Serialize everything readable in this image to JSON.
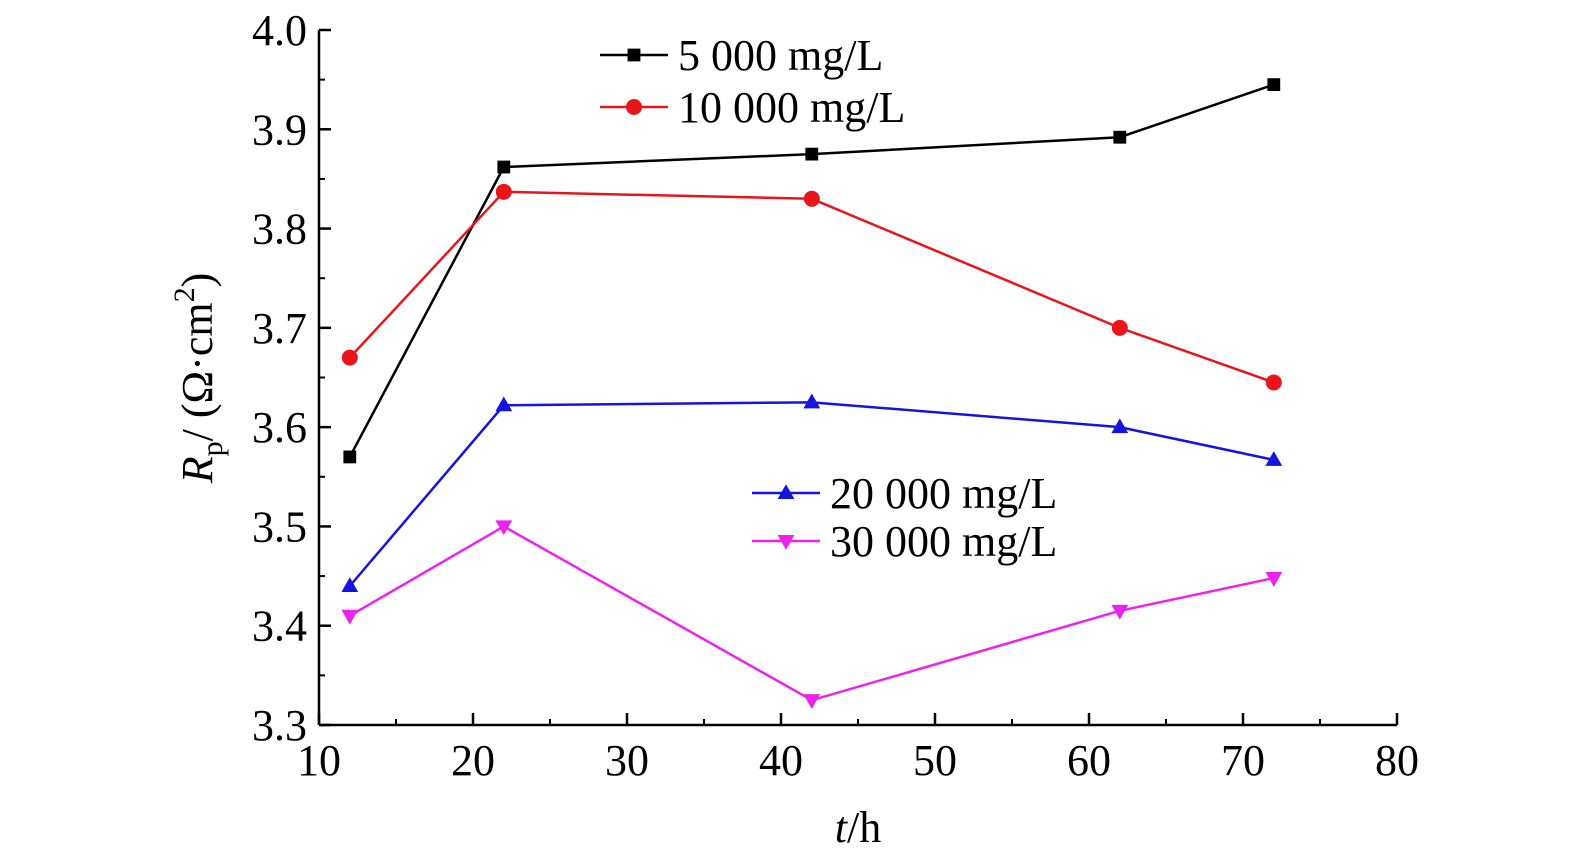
{
  "chart_data": {
    "type": "line",
    "xlabel": {
      "var": "t",
      "unit": "/h"
    },
    "ylabel": {
      "var": "R",
      "sub": "p",
      "unit_pre": "/ (Ω·cm",
      "sup": "2",
      "unit_post": ")"
    },
    "xlim": [
      10,
      80
    ],
    "ylim": [
      3.3,
      4.0
    ],
    "xticks": [
      10,
      20,
      30,
      40,
      50,
      60,
      70,
      80
    ],
    "xtick_labels": [
      "10",
      "20",
      "30",
      "40",
      "50",
      "60",
      "70",
      "80"
    ],
    "yticks": [
      3.3,
      3.4,
      3.5,
      3.6,
      3.7,
      3.8,
      3.9,
      4.0
    ],
    "ytick_labels": [
      "3.3",
      "3.4",
      "3.5",
      "3.6",
      "3.7",
      "3.8",
      "3.9",
      "4.0"
    ],
    "grid": false,
    "series": [
      {
        "name": "5 000 mg/L",
        "color": "#000000",
        "marker": "square",
        "x": [
          12,
          22,
          42,
          62,
          72
        ],
        "y": [
          3.57,
          3.862,
          3.875,
          3.892,
          3.945
        ]
      },
      {
        "name": "10 000 mg/L",
        "color": "#e8151b",
        "marker": "circle",
        "x": [
          12,
          22,
          42,
          62,
          72
        ],
        "y": [
          3.67,
          3.837,
          3.83,
          3.7,
          3.645
        ]
      },
      {
        "name": "20 000 mg/L",
        "color": "#1515dd",
        "marker": "triangle-up",
        "x": [
          12,
          22,
          42,
          62,
          72
        ],
        "y": [
          3.44,
          3.622,
          3.625,
          3.6,
          3.567
        ]
      },
      {
        "name": "30 000 mg/L",
        "color": "#ee22ee",
        "marker": "triangle-down",
        "x": [
          12,
          22,
          42,
          62,
          72
        ],
        "y": [
          3.41,
          3.5,
          3.325,
          3.415,
          3.448
        ]
      }
    ],
    "legends": [
      {
        "placement": "top-center",
        "series": [
          0,
          1
        ]
      },
      {
        "placement": "center-right",
        "series": [
          2,
          3
        ]
      }
    ]
  }
}
